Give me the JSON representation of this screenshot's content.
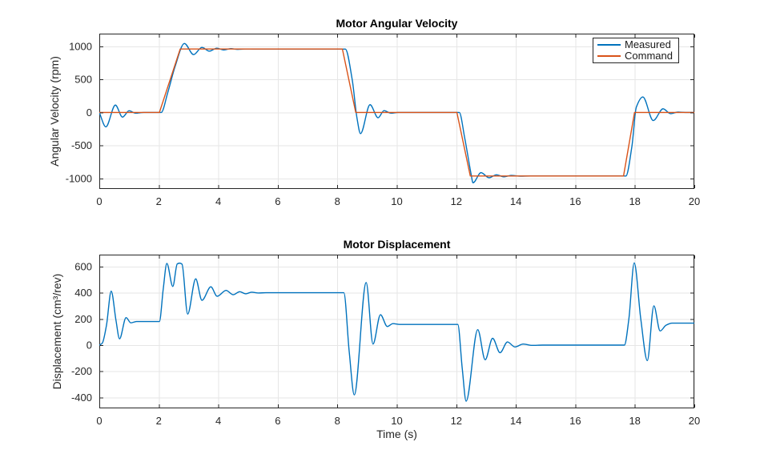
{
  "figure": {
    "background": "#ffffff"
  },
  "colors": {
    "measured": "#0072BD",
    "command": "#D95319",
    "grid": "#e6e6e6",
    "axis": "#262626",
    "tick_text": "#262626",
    "title_text": "#000000"
  },
  "chart_data": [
    {
      "type": "line",
      "title": "Motor Angular Velocity",
      "xlabel": "",
      "ylabel": "Angular Velocity (rpm)",
      "xlim": [
        0,
        20
      ],
      "ylim": [
        -1158,
        1194
      ],
      "xticks": [
        0,
        2,
        4,
        6,
        8,
        10,
        12,
        14,
        16,
        18,
        20
      ],
      "yticks": [
        -1000,
        -500,
        0,
        500,
        1000
      ],
      "grid": true,
      "legend": {
        "position": "northeast",
        "items": [
          "Measured",
          "Command"
        ]
      },
      "series": [
        {
          "name": "Measured",
          "color_key": "measured",
          "interp": "monotone",
          "points": [
            [
              0,
              0
            ],
            [
              0.22,
              -218
            ],
            [
              0.54,
              112
            ],
            [
              0.78,
              -70
            ],
            [
              1.0,
              26
            ],
            [
              1.22,
              -10
            ],
            [
              1.5,
              0
            ],
            [
              2.08,
              0
            ],
            [
              2.3,
              300
            ],
            [
              2.55,
              700
            ],
            [
              2.86,
              1045
            ],
            [
              3.17,
              876
            ],
            [
              3.45,
              986
            ],
            [
              3.7,
              929
            ],
            [
              3.95,
              974
            ],
            [
              4.18,
              947
            ],
            [
              4.42,
              967
            ],
            [
              4.65,
              956
            ],
            [
              4.9,
              962
            ],
            [
              5.2,
              960
            ],
            [
              8.27,
              960
            ],
            [
              8.5,
              500
            ],
            [
              8.66,
              -80
            ],
            [
              8.78,
              -320
            ],
            [
              9.1,
              118
            ],
            [
              9.37,
              -80
            ],
            [
              9.57,
              28
            ],
            [
              9.8,
              -10
            ],
            [
              10.05,
              0
            ],
            [
              12.1,
              0
            ],
            [
              12.28,
              -380
            ],
            [
              12.5,
              -940
            ],
            [
              12.56,
              -1065
            ],
            [
              12.83,
              -911
            ],
            [
              13.1,
              -988
            ],
            [
              13.35,
              -943
            ],
            [
              13.6,
              -974
            ],
            [
              13.85,
              -953
            ],
            [
              14.15,
              -964
            ],
            [
              14.5,
              -962
            ],
            [
              17.7,
              -962
            ],
            [
              17.9,
              -520
            ],
            [
              18.05,
              80
            ],
            [
              18.27,
              236
            ],
            [
              18.62,
              -122
            ],
            [
              18.95,
              56
            ],
            [
              19.2,
              -18
            ],
            [
              19.45,
              6
            ],
            [
              19.7,
              0
            ],
            [
              20,
              0
            ]
          ]
        },
        {
          "name": "Command",
          "color_key": "command",
          "interp": "linear",
          "points": [
            [
              0,
              0
            ],
            [
              2.02,
              0
            ],
            [
              2.72,
              962
            ],
            [
              8.17,
              962
            ],
            [
              8.62,
              0
            ],
            [
              12.02,
              0
            ],
            [
              12.47,
              -962
            ],
            [
              17.62,
              -962
            ],
            [
              17.99,
              0
            ],
            [
              20,
              0
            ]
          ]
        }
      ]
    },
    {
      "type": "line",
      "title": "Motor Displacement",
      "xlabel": "Time (s)",
      "ylabel": "Displacement (cm³/rev)",
      "xlim": [
        0,
        20
      ],
      "ylim": [
        -483,
        691
      ],
      "xticks": [
        0,
        2,
        4,
        6,
        8,
        10,
        12,
        14,
        16,
        18,
        20
      ],
      "yticks": [
        -400,
        -200,
        0,
        200,
        400,
        600
      ],
      "grid": true,
      "series": [
        {
          "name": "Displacement",
          "color_key": "measured",
          "interp": "monotone",
          "points": [
            [
              0,
              0
            ],
            [
              0.1,
              15
            ],
            [
              0.24,
              150
            ],
            [
              0.4,
              412
            ],
            [
              0.56,
              190
            ],
            [
              0.68,
              48
            ],
            [
              0.9,
              210
            ],
            [
              1.06,
              170
            ],
            [
              1.25,
              180
            ],
            [
              2.02,
              180
            ],
            [
              2.15,
              430
            ],
            [
              2.27,
              624
            ],
            [
              2.47,
              448
            ],
            [
              2.62,
              620
            ],
            [
              2.7,
              626
            ],
            [
              2.78,
              618
            ],
            [
              2.97,
              237
            ],
            [
              3.24,
              506
            ],
            [
              3.45,
              342
            ],
            [
              3.75,
              445
            ],
            [
              3.96,
              373
            ],
            [
              4.26,
              418
            ],
            [
              4.5,
              385
            ],
            [
              4.72,
              408
            ],
            [
              4.92,
              392
            ],
            [
              5.12,
              404
            ],
            [
              5.35,
              398
            ],
            [
              5.6,
              400
            ],
            [
              8.22,
              400
            ],
            [
              8.4,
              -50
            ],
            [
              8.57,
              -380
            ],
            [
              8.97,
              478
            ],
            [
              9.2,
              8
            ],
            [
              9.45,
              232
            ],
            [
              9.68,
              142
            ],
            [
              9.87,
              164
            ],
            [
              10.1,
              158
            ],
            [
              12.05,
              158
            ],
            [
              12.2,
              -180
            ],
            [
              12.33,
              -428
            ],
            [
              12.72,
              118
            ],
            [
              12.97,
              -112
            ],
            [
              13.22,
              52
            ],
            [
              13.47,
              -58
            ],
            [
              13.72,
              24
            ],
            [
              13.97,
              -14
            ],
            [
              14.25,
              8
            ],
            [
              14.55,
              -2
            ],
            [
              14.9,
              0
            ],
            [
              17.65,
              0
            ],
            [
              17.8,
              200
            ],
            [
              17.98,
              628
            ],
            [
              18.2,
              200
            ],
            [
              18.42,
              -118
            ],
            [
              18.64,
              300
            ],
            [
              18.85,
              108
            ],
            [
              19.05,
              152
            ],
            [
              19.25,
              168
            ],
            [
              20,
              168
            ]
          ]
        }
      ]
    }
  ]
}
